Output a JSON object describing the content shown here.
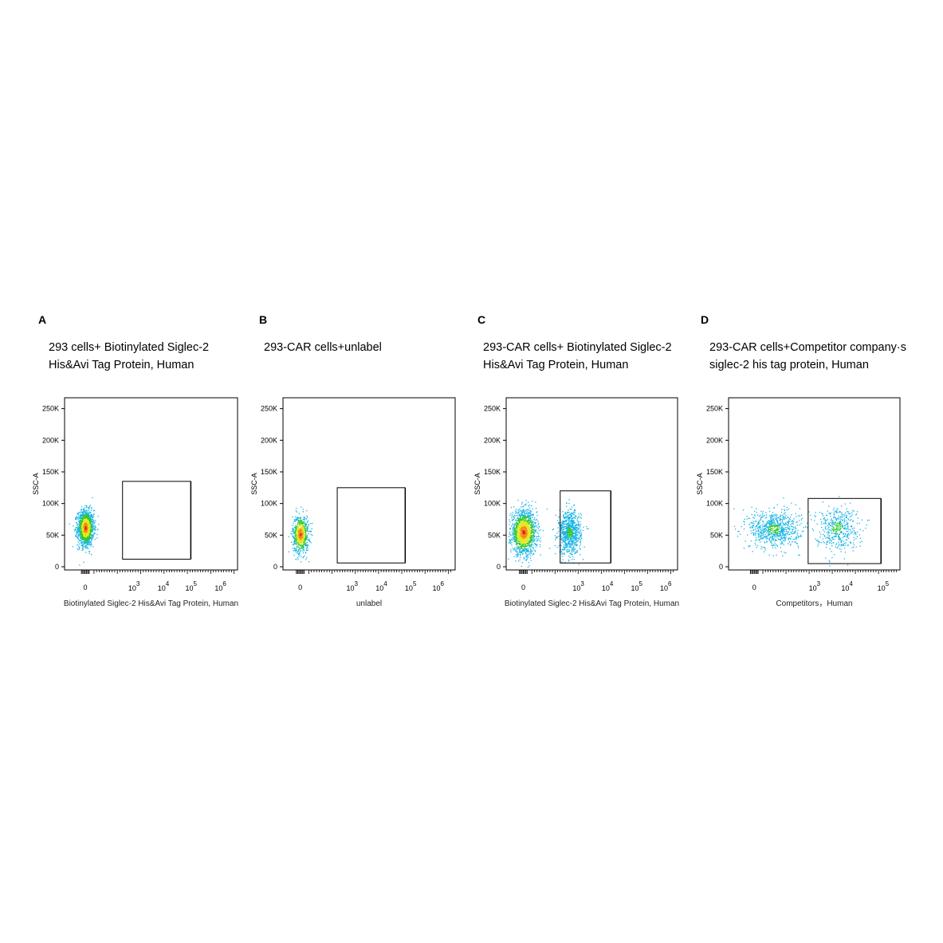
{
  "panels": [
    {
      "letter": "A",
      "title_lines": [
        "293 cells+ Biotinylated Siglec-2",
        "His&Avi Tag Protein, Human"
      ],
      "chart_data": {
        "type": "scatter",
        "ylabel": "SSC-A",
        "xlabel": "Biotinylated Siglec-2 His&Avi Tag Protein, Human",
        "y_ticks": [
          "250K",
          "200K",
          "150K",
          "100K",
          "50K",
          "0"
        ],
        "y_tick_values": [
          250000,
          200000,
          150000,
          100000,
          50000,
          0
        ],
        "x_ticks": [
          "0",
          "10^3",
          "10^4",
          "10^5",
          "10^6"
        ],
        "ylim": [
          0,
          262144
        ],
        "x_scale": "biexponential",
        "gate": {
          "x_range": [
            500,
            80000
          ],
          "y_range": [
            12000,
            135000
          ]
        },
        "populations": [
          {
            "x_center": 0,
            "x_spread_decades": 0.25,
            "y_center": 62000,
            "y_spread": 14000,
            "count": 1400,
            "dense": true
          }
        ],
        "colormap": "blue-to-red density"
      }
    },
    {
      "letter": "B",
      "title_lines": [
        "293-CAR cells+unlabel"
      ],
      "chart_data": {
        "type": "scatter",
        "ylabel": "SSC-A",
        "xlabel": "unlabel",
        "y_ticks": [
          "250K",
          "200K",
          "150K",
          "100K",
          "50K",
          "0"
        ],
        "y_tick_values": [
          250000,
          200000,
          150000,
          100000,
          50000,
          0
        ],
        "x_ticks": [
          "0",
          "10^3",
          "10^4",
          "10^5",
          "10^6"
        ],
        "ylim": [
          0,
          262144
        ],
        "x_scale": "biexponential",
        "gate": {
          "x_range": [
            500,
            80000
          ],
          "y_range": [
            6000,
            125000
          ]
        },
        "populations": [
          {
            "x_center": 0,
            "x_spread_decades": 0.25,
            "y_center": 52000,
            "y_spread": 15000,
            "count": 700,
            "dense": true
          }
        ],
        "colormap": "blue-to-red density"
      }
    },
    {
      "letter": "C",
      "title_lines": [
        "293-CAR cells+ Biotinylated Siglec-2",
        "His&Avi Tag Protein, Human"
      ],
      "chart_data": {
        "type": "scatter",
        "ylabel": "SSC-A",
        "xlabel": "Biotinylated Siglec-2 His&Avi Tag Protein, Human",
        "y_ticks": [
          "250K",
          "200K",
          "150K",
          "100K",
          "50K",
          "0"
        ],
        "y_tick_values": [
          250000,
          200000,
          150000,
          100000,
          50000,
          0
        ],
        "x_ticks": [
          "0",
          "10^3",
          "10^4",
          "10^5",
          "10^6"
        ],
        "ylim": [
          0,
          262144
        ],
        "x_scale": "biexponential",
        "gate": {
          "x_range": [
            500,
            20000
          ],
          "y_range": [
            6000,
            120000
          ]
        },
        "populations": [
          {
            "x_center": 0,
            "x_spread_decades": 0.4,
            "y_center": 55000,
            "y_spread": 17000,
            "count": 1500,
            "dense": true
          },
          {
            "x_center": 800,
            "x_spread_decades": 0.35,
            "y_center": 55000,
            "y_spread": 17000,
            "count": 800,
            "dense": false
          }
        ],
        "colormap": "blue-to-red density"
      }
    },
    {
      "letter": "D",
      "title_lines": [
        "293-CAR cells+Competitor company·s",
        "siglec-2 his tag protein, Human"
      ],
      "chart_data": {
        "type": "scatter",
        "ylabel": "SSC-A",
        "xlabel": "Competitors，Human",
        "y_ticks": [
          "250K",
          "200K",
          "150K",
          "100K",
          "50K",
          "0"
        ],
        "y_tick_values": [
          250000,
          200000,
          150000,
          100000,
          50000,
          0
        ],
        "x_ticks": [
          "0",
          "10^3",
          "10^4",
          "10^5"
        ],
        "ylim": [
          0,
          262144
        ],
        "x_scale": "biexponential",
        "gate": {
          "x_range": [
            1000,
            200000
          ],
          "y_range": [
            5000,
            108000
          ]
        },
        "populations": [
          {
            "x_center": 200,
            "x_spread_decades": 0.7,
            "y_center": 60000,
            "y_spread": 15000,
            "count": 750,
            "dense": false
          },
          {
            "x_center": 8000,
            "x_spread_decades": 0.6,
            "y_center": 62000,
            "y_spread": 17000,
            "count": 450,
            "dense": false
          }
        ],
        "colormap": "blue-to-red density"
      }
    }
  ]
}
